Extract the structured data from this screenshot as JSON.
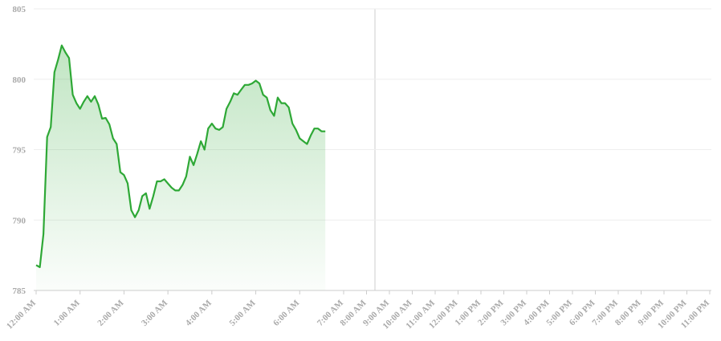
{
  "chart_data": {
    "type": "area",
    "x": [
      0,
      5,
      10,
      15,
      20,
      25,
      30,
      35,
      40,
      45,
      50,
      55,
      60,
      65,
      70,
      75,
      80,
      85,
      90,
      95,
      100,
      105,
      110,
      115,
      120,
      125,
      130,
      135,
      140,
      145,
      150,
      155,
      160,
      165,
      170,
      175,
      180,
      185,
      190,
      195,
      200,
      205,
      210,
      215,
      220,
      225,
      230,
      235,
      240,
      245,
      250,
      255,
      260,
      265,
      270,
      275,
      280,
      285,
      290,
      295,
      300,
      305,
      310,
      315,
      320,
      325,
      330,
      335,
      340,
      345,
      350,
      355,
      360,
      365,
      370,
      375,
      380,
      385,
      390,
      395
    ],
    "series": [
      {
        "color": "#2ea836",
        "values": [
          786.8,
          786.65,
          789.0,
          795.9,
          796.6,
          800.5,
          801.4,
          802.4,
          801.9,
          801.5,
          798.9,
          798.3,
          797.9,
          798.4,
          798.8,
          798.4,
          798.8,
          798.2,
          797.2,
          797.25,
          796.8,
          795.8,
          795.4,
          793.4,
          793.2,
          792.6,
          790.7,
          790.2,
          790.7,
          791.7,
          791.9,
          790.8,
          791.7,
          792.75,
          792.75,
          792.9,
          792.6,
          792.3,
          792.1,
          792.1,
          792.5,
          793.1,
          794.5,
          793.9,
          794.7,
          795.6,
          795.0,
          796.5,
          796.85,
          796.5,
          796.4,
          796.6,
          797.9,
          798.4,
          799.0,
          798.9,
          799.25,
          799.6,
          799.6,
          799.7,
          799.9,
          799.7,
          798.9,
          798.7,
          797.8,
          797.4,
          798.7,
          798.3,
          798.3,
          798.0,
          796.85,
          796.4,
          795.8,
          795.6,
          795.4,
          796.0,
          796.5,
          796.5,
          796.3,
          796.3
        ]
      }
    ],
    "xticks": [
      {
        "value": 0,
        "label": "12:00 AM"
      },
      {
        "value": 60,
        "label": "1:00 AM"
      },
      {
        "value": 120,
        "label": "2:00 AM"
      },
      {
        "value": 180,
        "label": "3:00 AM"
      },
      {
        "value": 240,
        "label": "4:00 AM"
      },
      {
        "value": 300,
        "label": "5:00 AM"
      },
      {
        "value": 360,
        "label": "6:00 AM"
      },
      {
        "value": 420,
        "label": "7:00 AM"
      },
      {
        "value": 480,
        "label": "8:00 AM"
      },
      {
        "value": 540,
        "label": "9:00 AM"
      },
      {
        "value": 600,
        "label": "10:00 AM"
      },
      {
        "value": 660,
        "label": "11:00 AM"
      },
      {
        "value": 720,
        "label": "12:00 PM"
      },
      {
        "value": 780,
        "label": "1:00 PM"
      },
      {
        "value": 840,
        "label": "2:00 PM"
      },
      {
        "value": 900,
        "label": "3:00 PM"
      },
      {
        "value": 960,
        "label": "4:00 PM"
      },
      {
        "value": 1020,
        "label": "5:00 PM"
      },
      {
        "value": 1080,
        "label": "6:00 PM"
      },
      {
        "value": 1140,
        "label": "7:00 PM"
      },
      {
        "value": 1200,
        "label": "8:00 PM"
      },
      {
        "value": 1260,
        "label": "9:00 PM"
      },
      {
        "value": 1320,
        "label": "10:00 PM"
      },
      {
        "value": 1380,
        "label": "11:00 PM"
      }
    ],
    "ylim": [
      785,
      805
    ],
    "yticks": [
      785,
      790,
      795,
      800,
      805
    ],
    "grid": true
  }
}
